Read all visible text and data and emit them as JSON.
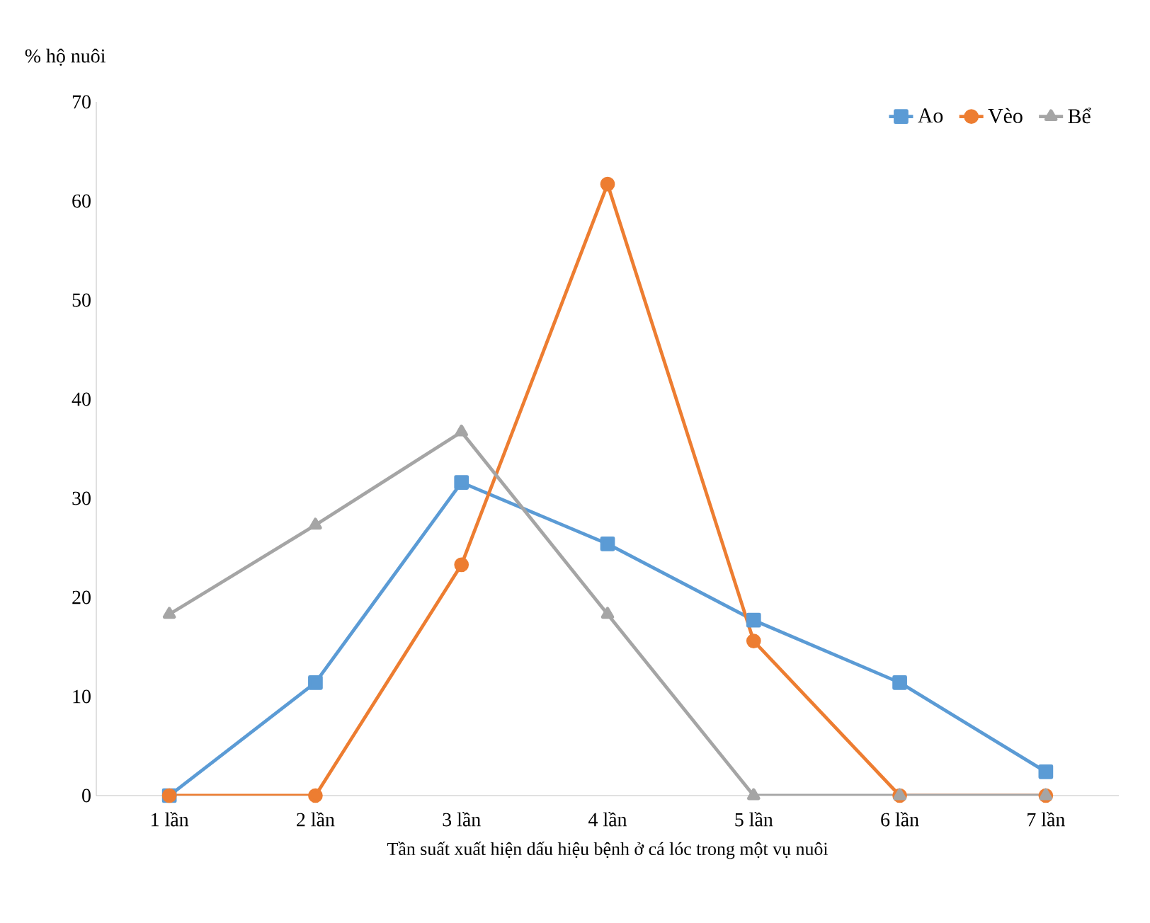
{
  "chart_data": {
    "type": "line",
    "xlabel": "Tần suất xuất hiện dấu hiệu bệnh ở cá lóc trong một vụ nuôi",
    "ylabel": "% hộ nuôi",
    "categories": [
      "1 lần",
      "2 lần",
      "3 lần",
      "4 lần",
      "5 lần",
      "6 lần",
      "7 lần"
    ],
    "series": [
      {
        "name": "Ao",
        "color": "#5b9bd5",
        "marker": "square",
        "values": [
          0,
          11.4,
          31.6,
          25.4,
          17.7,
          11.4,
          2.4
        ]
      },
      {
        "name": "Vèo",
        "color": "#ed7d31",
        "marker": "circle",
        "values": [
          0,
          0,
          23.3,
          61.7,
          15.6,
          0,
          0
        ]
      },
      {
        "name": "Bể",
        "color": "#a5a5a5",
        "marker": "triangle",
        "values": [
          18.3,
          27.3,
          36.7,
          18.3,
          0,
          0,
          0
        ]
      }
    ],
    "ylim": [
      0,
      70
    ],
    "yticks": [
      0,
      10,
      20,
      30,
      40,
      50,
      60,
      70
    ],
    "grid": false,
    "legend": "top right",
    "line_style": "solid"
  }
}
